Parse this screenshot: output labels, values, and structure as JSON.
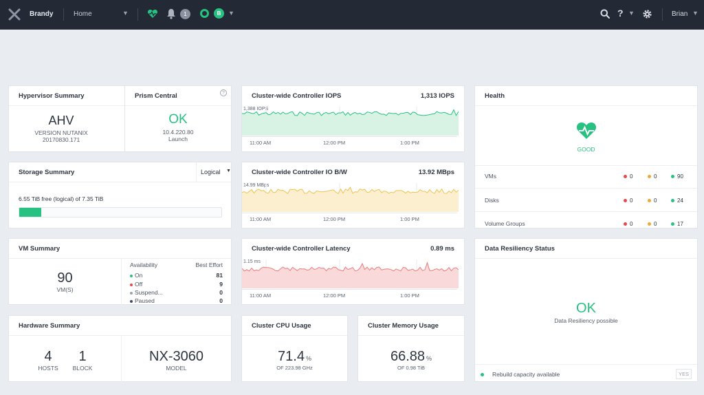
{
  "topbar": {
    "cluster_name": "Brandy",
    "home_label": "Home",
    "notification_count": "1",
    "user_initial": "B",
    "help_label": "?",
    "user_name": "Brian"
  },
  "hypervisor": {
    "title": "Hypervisor Summary",
    "name": "AHV",
    "version_line1": "VERSION NUTANIX",
    "version_line2": "20170830.171"
  },
  "prism": {
    "title": "Prism Central",
    "help_label": "?",
    "status": "OK",
    "ip": "10.4.220.80",
    "launch": "Launch"
  },
  "iops": {
    "title": "Cluster-wide Controller IOPS",
    "value": "1,313 IOPS",
    "peak": "1,388 IOPS",
    "ticks": [
      "11:00 AM",
      "12:00 PM",
      "1:00 PM"
    ]
  },
  "storage": {
    "title": "Storage Summary",
    "mode": "Logical",
    "free_text": "6.55 TiB free (logical) of 7.35 TiB",
    "used_fraction": 0.109
  },
  "bw": {
    "title": "Cluster-wide Controller IO B/W",
    "value": "13.92 MBps",
    "peak": "14.99 MBps",
    "ticks": [
      "11:00 AM",
      "12:00 PM",
      "1:00 PM"
    ]
  },
  "latency": {
    "title": "Cluster-wide Controller Latency",
    "value": "0.89 ms",
    "peak": "1.15 ms",
    "ticks": [
      "11:00 AM",
      "12:00 PM",
      "1:00 PM"
    ]
  },
  "health": {
    "title": "Health",
    "status": "GOOD",
    "rows": [
      {
        "label": "VMs",
        "critical": "0",
        "warning": "0",
        "good": "90"
      },
      {
        "label": "Disks",
        "critical": "0",
        "warning": "0",
        "good": "24"
      },
      {
        "label": "Volume Groups",
        "critical": "0",
        "warning": "0",
        "good": "17"
      }
    ]
  },
  "vm": {
    "title": "VM Summary",
    "count": "90",
    "count_label": "VM(S)",
    "availability_header": "Availability",
    "best_effort_header": "Best Effort",
    "rows": [
      {
        "label": "On",
        "value": "81"
      },
      {
        "label": "Off",
        "value": "9"
      },
      {
        "label": "Suspend...",
        "value": "0"
      },
      {
        "label": "Paused",
        "value": "0"
      }
    ]
  },
  "resiliency": {
    "title": "Data Resiliency Status",
    "status": "OK",
    "sub": "Data Resiliency possible",
    "rebuild": "Rebuild capacity available",
    "rebuild_value": "YES"
  },
  "hardware": {
    "title": "Hardware Summary",
    "hosts": "4",
    "hosts_label": "HOSTS",
    "blocks": "1",
    "blocks_label": "BLOCK",
    "model": "NX-3060",
    "model_label": "MODEL"
  },
  "cpu": {
    "title": "Cluster CPU Usage",
    "value": "71.4",
    "unit": "%",
    "sub": "OF 223.98 GHz"
  },
  "memory": {
    "title": "Cluster Memory Usage",
    "value": "66.88",
    "unit": "%",
    "sub": "OF 0.98 TiB"
  },
  "colors": {
    "accent": "#27c281",
    "critical": "#e8474c",
    "warning": "#f0a734",
    "iops_fill": "#d8f3e4",
    "iops_line": "#27c281",
    "bw_fill": "#fbefd0",
    "bw_line": "#f0c24d",
    "lat_fill": "#f9d9d9",
    "lat_line": "#ea7d7d"
  }
}
